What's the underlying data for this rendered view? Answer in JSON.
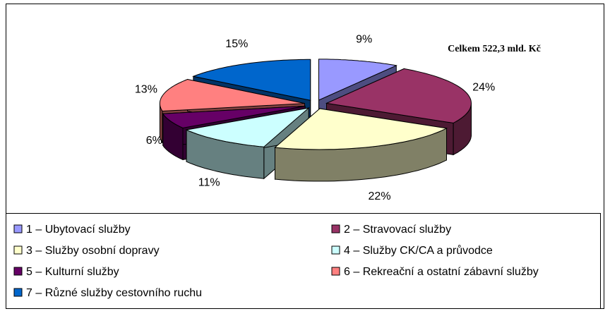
{
  "chart_data": {
    "type": "pie",
    "annotation": "Celkem 522,3 mld. Kč",
    "categories": [
      "1 – Ubytovací služby",
      "2 – Stravovací služby",
      "3 – Služby osobní dopravy",
      "4 – Služby CK/CA a průvodce",
      "5 – Kulturní služby",
      "6 – Rekreační a ostatní zábavní služby",
      "7 – Různé služby cestovního ruchu"
    ],
    "values": [
      9,
      24,
      22,
      11,
      6,
      13,
      15
    ],
    "value_labels": [
      "9%",
      "24%",
      "22%",
      "11%",
      "6%",
      "13%",
      "15%"
    ],
    "colors": [
      "#9999ff",
      "#993366",
      "#ffffcc",
      "#ccffff",
      "#660066",
      "#ff8080",
      "#0066cc"
    ],
    "legend": "bottom"
  }
}
